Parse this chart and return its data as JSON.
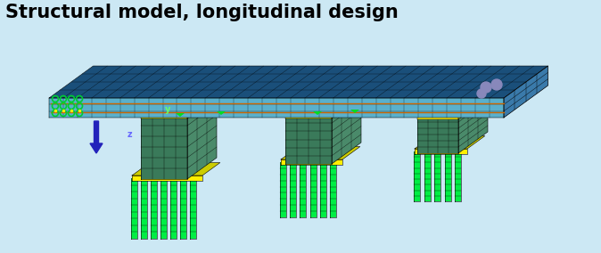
{
  "title": "Structural model, longitudinal design",
  "title_fontsize": 15,
  "title_fontweight": "bold",
  "title_color": "#000000",
  "background_color": "#cce8f4",
  "fig_width": 6.74,
  "fig_height": 2.84,
  "dpi": 100,
  "deck_front_color": "#5ab0cc",
  "deck_top_color": "#1a4f7a",
  "deck_right_color": "#3a7aaa",
  "pier_front_color": "#3a7a5a",
  "pier_top_color": "#2a6a4a",
  "pier_right_color": "#4a8a6a",
  "pile_color": "#00ee44",
  "pile_line_color": "#000000",
  "yellow_accent": "#ffee00",
  "orange_accent": "#cc6600",
  "arrow_color": "#2222bb",
  "label_y_color": "#66ff66",
  "label_z_color": "#6666ff"
}
